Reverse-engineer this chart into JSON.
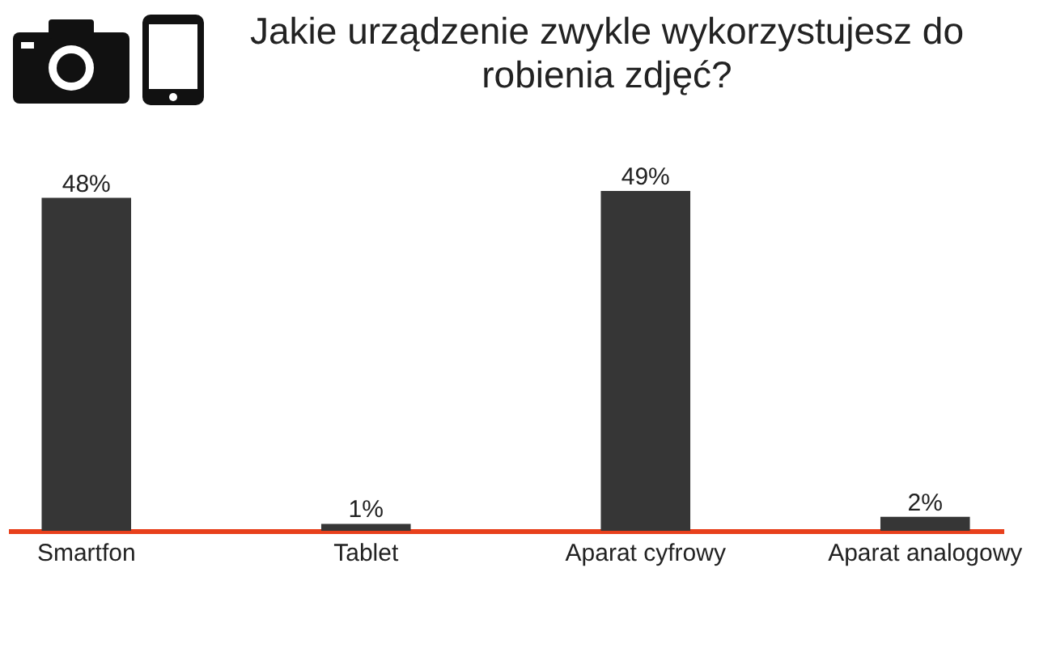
{
  "chart_data": {
    "type": "bar",
    "title": "Jakie urządzenie zwykle wykorzystujesz do robienia zdjęć?",
    "categories": [
      "Smartfon",
      "Tablet",
      "Aparat cyfrowy",
      "Aparat analogowy"
    ],
    "values": [
      48,
      1,
      49,
      2
    ],
    "value_labels": [
      "48%",
      "1%",
      "49%",
      "2%"
    ],
    "color": "#363636"
  }
}
